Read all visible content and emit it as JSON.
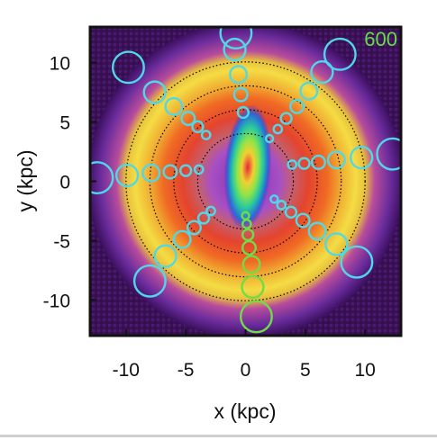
{
  "chart_data": {
    "type": "heatmap",
    "xlabel": "x (kpc)",
    "ylabel": "y (kpc)",
    "xlim": [
      -13,
      13
    ],
    "ylim": [
      -13,
      13
    ],
    "xticks": [
      -10,
      -5,
      0,
      5,
      10
    ],
    "yticks": [
      10,
      5,
      0,
      -5,
      -10
    ],
    "xtick_labels": [
      "-10",
      "-5",
      "0",
      "5",
      "10"
    ],
    "ytick_labels": [
      "10",
      "5",
      "0",
      "-5",
      "-10"
    ],
    "corner_label": "600",
    "corner_label_color": "#66dd44",
    "density_map": {
      "center": [
        0,
        0
      ],
      "bar": {
        "half_length_kpc": 4.5,
        "half_width_kpc": 1.2,
        "angle_deg": -8
      },
      "ring_inner_radius_kpc": 6.5,
      "ring_outer_radius_kpc": 9.5,
      "colormap": [
        "#3a0a5c",
        "#7a2bb5",
        "#b255c8",
        "#e0383c",
        "#f08830",
        "#f5e040",
        "#9fe850",
        "#2bd0a0",
        "#1a6ad8"
      ]
    },
    "guide_circles": {
      "radii_kpc": [
        4,
        6,
        8,
        10
      ],
      "style": "dotted",
      "color": "#000000"
    },
    "series": [
      {
        "color": "#4fd8e8",
        "points": [
          {
            "x": 12.3,
            "y": 2.3,
            "r": 1.3
          },
          {
            "x": 9.7,
            "y": 2.0,
            "r": 0.9
          },
          {
            "x": 7.6,
            "y": 1.8,
            "r": 0.7
          },
          {
            "x": 6.1,
            "y": 1.6,
            "r": 0.55
          },
          {
            "x": 4.9,
            "y": 1.5,
            "r": 0.45
          },
          {
            "x": 3.9,
            "y": 1.4,
            "r": 0.35
          },
          {
            "x": -12.4,
            "y": 0.3,
            "r": 1.3
          },
          {
            "x": -9.9,
            "y": 0.5,
            "r": 0.9
          },
          {
            "x": -7.9,
            "y": 0.7,
            "r": 0.7
          },
          {
            "x": -6.3,
            "y": 0.8,
            "r": 0.55
          },
          {
            "x": -5.0,
            "y": 0.9,
            "r": 0.45
          },
          {
            "x": -3.9,
            "y": 1.0,
            "r": 0.35
          },
          {
            "x": -0.8,
            "y": 12.5,
            "r": 1.3
          },
          {
            "x": -0.9,
            "y": 11.1,
            "r": 0.9
          },
          {
            "x": -0.6,
            "y": 9.0,
            "r": 0.7
          },
          {
            "x": -0.4,
            "y": 7.3,
            "r": 0.55
          },
          {
            "x": -0.2,
            "y": 5.8,
            "r": 0.45
          },
          {
            "x": -9.8,
            "y": 9.6,
            "r": 1.3
          },
          {
            "x": -7.6,
            "y": 7.5,
            "r": 0.9
          },
          {
            "x": -6.0,
            "y": 6.3,
            "r": 0.7
          },
          {
            "x": -4.8,
            "y": 5.3,
            "r": 0.55
          },
          {
            "x": -4.0,
            "y": 4.6,
            "r": 0.45
          },
          {
            "x": -3.3,
            "y": 3.9,
            "r": 0.35
          },
          {
            "x": 7.9,
            "y": 10.7,
            "r": 1.3
          },
          {
            "x": 6.4,
            "y": 9.2,
            "r": 0.9
          },
          {
            "x": 5.3,
            "y": 7.6,
            "r": 0.7
          },
          {
            "x": 4.3,
            "y": 6.3,
            "r": 0.55
          },
          {
            "x": 3.4,
            "y": 5.3,
            "r": 0.45
          },
          {
            "x": 2.7,
            "y": 4.4,
            "r": 0.35
          },
          {
            "x": 2.0,
            "y": 3.6,
            "r": 0.3
          },
          {
            "x": -8.0,
            "y": -8.4,
            "r": 1.3
          },
          {
            "x": -6.7,
            "y": -6.3,
            "r": 0.9
          },
          {
            "x": -5.3,
            "y": -4.9,
            "r": 0.7
          },
          {
            "x": -4.3,
            "y": -3.9,
            "r": 0.55
          },
          {
            "x": -3.5,
            "y": -3.1,
            "r": 0.45
          },
          {
            "x": -2.9,
            "y": -2.5,
            "r": 0.35
          },
          {
            "x": 9.3,
            "y": -6.8,
            "r": 1.3
          },
          {
            "x": 7.6,
            "y": -5.3,
            "r": 0.9
          },
          {
            "x": 6.0,
            "y": -4.2,
            "r": 0.7
          },
          {
            "x": 4.8,
            "y": -3.3,
            "r": 0.55
          },
          {
            "x": 3.8,
            "y": -2.6,
            "r": 0.45
          },
          {
            "x": 3.0,
            "y": -2.0,
            "r": 0.35
          },
          {
            "x": 2.4,
            "y": -1.5,
            "r": 0.3
          }
        ]
      },
      {
        "color": "#6fdc48",
        "points": [
          {
            "x": 0.9,
            "y": -11.4,
            "r": 1.3
          },
          {
            "x": 0.6,
            "y": -8.9,
            "r": 0.9
          },
          {
            "x": 0.5,
            "y": -7.0,
            "r": 0.7
          },
          {
            "x": 0.3,
            "y": -5.6,
            "r": 0.55
          },
          {
            "x": 0.2,
            "y": -4.5,
            "r": 0.45
          },
          {
            "x": 0.1,
            "y": -3.6,
            "r": 0.35
          },
          {
            "x": 0.0,
            "y": -2.9,
            "r": 0.3
          }
        ]
      }
    ]
  }
}
